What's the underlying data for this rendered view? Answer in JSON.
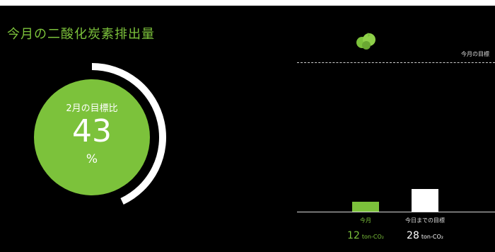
{
  "header": {
    "title": "今月の二酸化炭素排出量"
  },
  "gauge": {
    "label": "2月の目標比",
    "value": "43",
    "unit": "%",
    "progress_percent": 43,
    "fill_color": "#7cc23b",
    "ring_color": "#ffffff"
  },
  "leaf_icon": "leaf-icon",
  "chart_data": {
    "type": "bar",
    "categories": [
      "今月",
      "今日までの目標"
    ],
    "values": [
      12,
      28
    ],
    "unit": "ton-CO₂",
    "reference_line": {
      "label": "今月の目標"
    },
    "colors": [
      "#7cc23b",
      "#ffffff"
    ],
    "value_labels": [
      "12",
      "28"
    ]
  }
}
